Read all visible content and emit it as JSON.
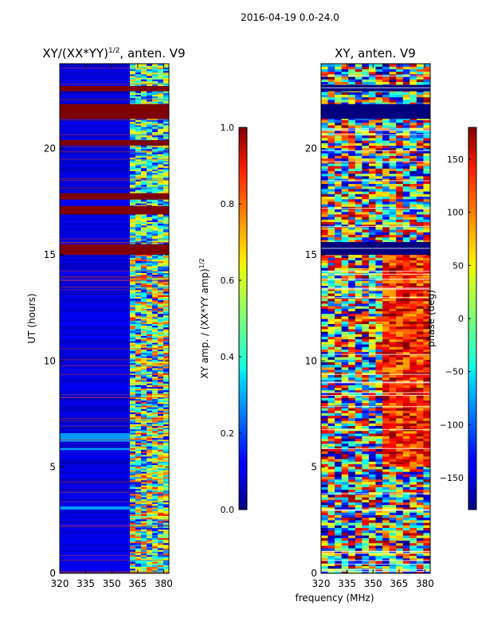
{
  "figure": {
    "suptitle": "2016-04-19 0.0-24.0",
    "xlabel": "frequency (MHz)"
  },
  "chart_data": [
    {
      "type": "heatmap",
      "title_main": "XY/(XX*YY)",
      "title_exp": "1/2",
      "title_rest": ", anten. V9",
      "ylabel": "UT (hours)",
      "xlim": [
        320,
        383
      ],
      "ylim": [
        0,
        24
      ],
      "xticks": [
        "320",
        "335",
        "350",
        "365",
        "380"
      ],
      "xtick_values": [
        320,
        335,
        350,
        365,
        380
      ],
      "yticks": [
        "0",
        "5",
        "10",
        "15",
        "20"
      ],
      "ytick_values": [
        0,
        5,
        10,
        15,
        20
      ],
      "saturated_bands_hours": [
        [
          22.7,
          22.95
        ],
        [
          21.4,
          22.1
        ],
        [
          20.15,
          20.4
        ],
        [
          17.6,
          17.9
        ],
        [
          16.9,
          17.3
        ],
        [
          15.0,
          15.5
        ]
      ],
      "bright_rows_hours": [
        [
          6.2,
          6.6
        ],
        [
          3.0,
          3.15
        ],
        [
          5.8,
          5.9
        ]
      ],
      "colorbar": {
        "label_main": "XY amp. / (XX*YY amp)",
        "label_exp": "1/2",
        "ticks": [
          "0.0",
          "0.2",
          "0.4",
          "0.6",
          "0.8",
          "1.0"
        ],
        "tick_values": [
          0,
          0.2,
          0.4,
          0.6,
          0.8,
          1.0
        ],
        "range": [
          0,
          1
        ]
      }
    },
    {
      "type": "heatmap",
      "title": "XY, anten. V9",
      "xlim": [
        320,
        383
      ],
      "ylim": [
        0,
        24
      ],
      "xticks": [
        "320",
        "335",
        "350",
        "365",
        "380"
      ],
      "xtick_values": [
        320,
        335,
        350,
        365,
        380
      ],
      "yticks": [
        "0",
        "5",
        "10",
        "15",
        "20"
      ],
      "ytick_values": [
        0,
        5,
        10,
        15,
        20
      ],
      "colorbar": {
        "label": "phase (deg)",
        "ticks": [
          "−150",
          "−100",
          "−50",
          "0",
          "50",
          "100",
          "150"
        ],
        "tick_values": [
          -150,
          -100,
          -50,
          0,
          50,
          100,
          150
        ],
        "range": [
          -180,
          180
        ]
      }
    }
  ]
}
